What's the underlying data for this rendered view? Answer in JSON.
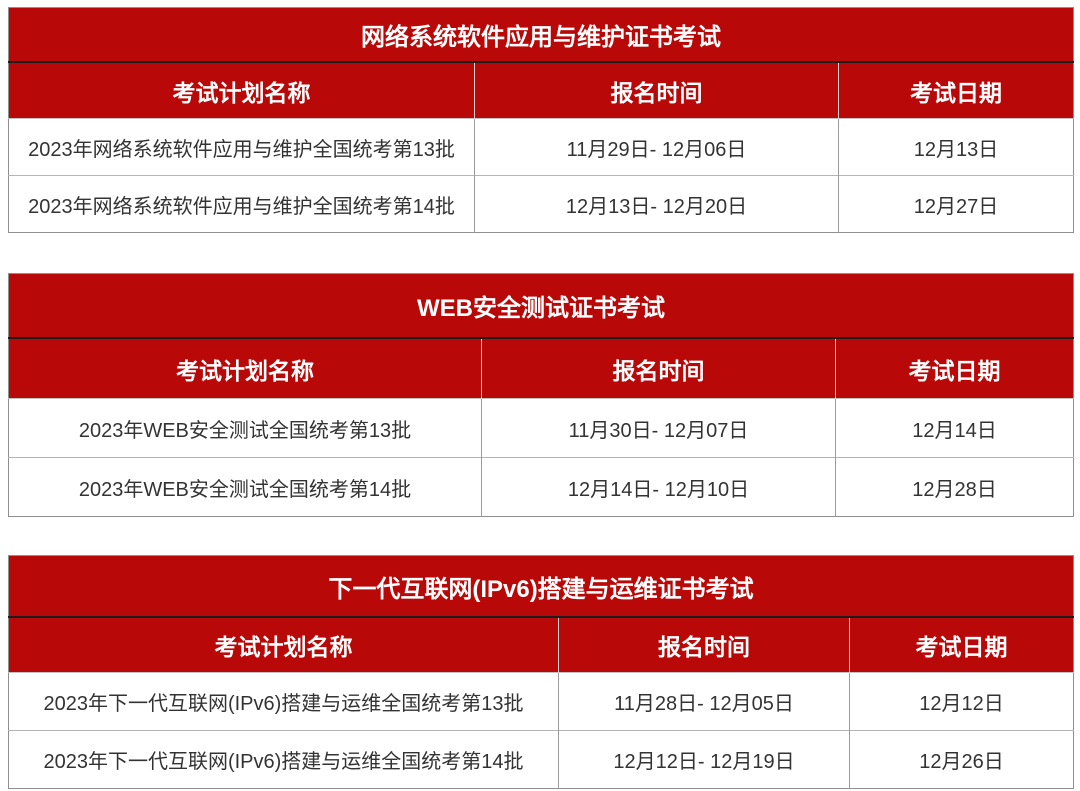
{
  "colors": {
    "header_red": "#B90808",
    "header_text": "#FFFFFF",
    "cell_text": "#333333",
    "page_background": "#FFFFFF"
  },
  "tables": [
    {
      "title": "网络系统软件应用与维护证书考试",
      "columns": [
        "考试计划名称",
        "报名时间",
        "考试日期"
      ],
      "rows": [
        {
          "plan": "2023年网络系统软件应用与维护全国统考第13批",
          "registration": "11月29日- 12月06日",
          "exam_date": "12月13日"
        },
        {
          "plan": "2023年网络系统软件应用与维护全国统考第14批",
          "registration": "12月13日- 12月20日",
          "exam_date": "12月27日"
        }
      ]
    },
    {
      "title": "WEB安全测试证书考试",
      "columns": [
        "考试计划名称",
        "报名时间",
        "考试日期"
      ],
      "rows": [
        {
          "plan": "2023年WEB安全测试全国统考第13批",
          "registration": "11月30日- 12月07日",
          "exam_date": "12月14日"
        },
        {
          "plan": "2023年WEB安全测试全国统考第14批",
          "registration": "12月14日- 12月10日",
          "exam_date": "12月28日"
        }
      ]
    },
    {
      "title": "下一代互联网(IPv6)搭建与运维证书考试",
      "columns": [
        "考试计划名称",
        "报名时间",
        "考试日期"
      ],
      "rows": [
        {
          "plan": "2023年下一代互联网(IPv6)搭建与运维全国统考第13批",
          "registration": "11月28日- 12月05日",
          "exam_date": "12月12日"
        },
        {
          "plan": "2023年下一代互联网(IPv6)搭建与运维全国统考第14批",
          "registration": "12月12日- 12月19日",
          "exam_date": "12月26日"
        }
      ]
    }
  ]
}
